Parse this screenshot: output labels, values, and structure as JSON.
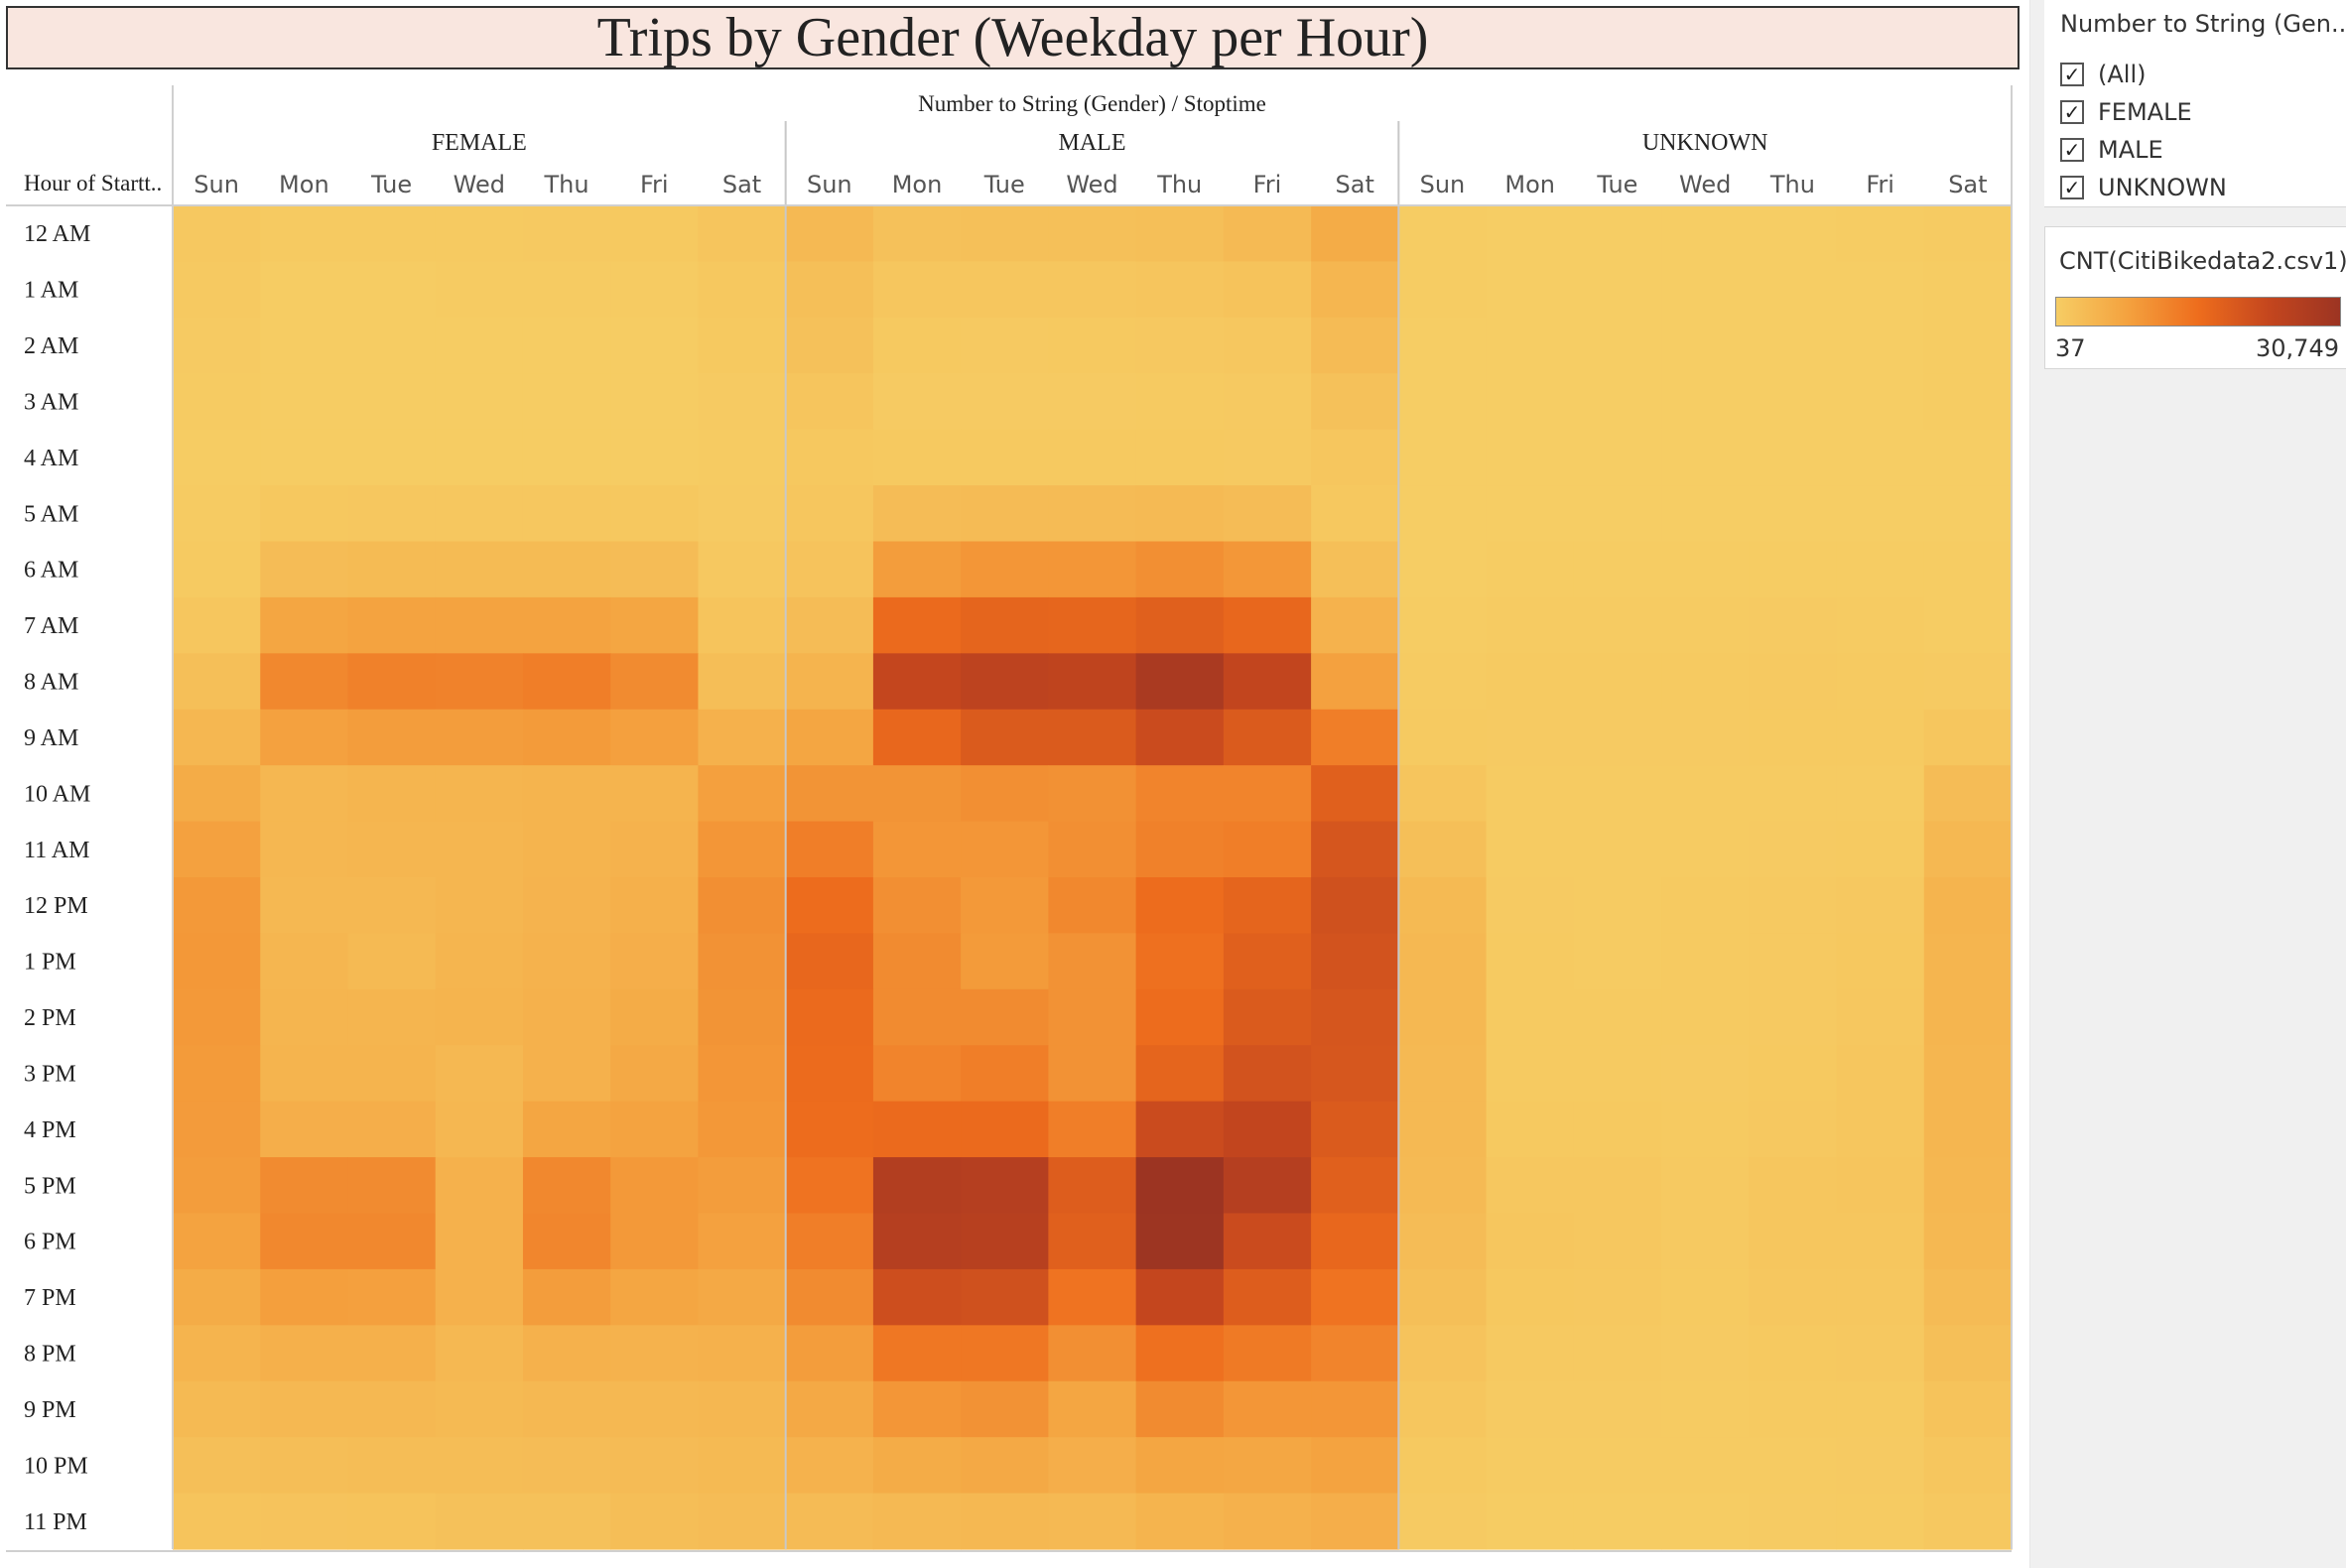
{
  "title": "Trips by Gender (Weekday per Hour)",
  "header": {
    "columns_title": "Number to String (Gender)  /  Stoptime",
    "row_header": "Hour of Startt.."
  },
  "filter": {
    "title": "Number to String (Gen...",
    "items": [
      {
        "label": "(All)",
        "checked": true
      },
      {
        "label": "FEMALE",
        "checked": true
      },
      {
        "label": "MALE",
        "checked": true
      },
      {
        "label": "UNKNOWN",
        "checked": true
      }
    ]
  },
  "legend": {
    "title": "CNT(CitiBikedata2.csv1)",
    "min_label": "37",
    "max_label": "30,749",
    "colors": [
      "#f6cd64",
      "#f4a23f",
      "#ee6d1d",
      "#c4461e",
      "#9c3422"
    ]
  },
  "chart_data": {
    "type": "heatmap",
    "title": "Trips by Gender (Weekday per Hour)",
    "xlabel": "Number to String (Gender)  /  Stoptime",
    "ylabel": "Hour of Startt..",
    "measure": "CNT(CitiBikedata2.csv1)",
    "color_range": [
      37,
      30749
    ],
    "groups": [
      "FEMALE",
      "MALE",
      "UNKNOWN"
    ],
    "days": [
      "Sun",
      "Mon",
      "Tue",
      "Wed",
      "Thu",
      "Fri",
      "Sat"
    ],
    "hours": [
      "12 AM",
      "1 AM",
      "2 AM",
      "3 AM",
      "4 AM",
      "5 AM",
      "6 AM",
      "7 AM",
      "8 AM",
      "9 AM",
      "10 AM",
      "11 AM",
      "12 PM",
      "1 PM",
      "2 PM",
      "3 PM",
      "4 PM",
      "5 PM",
      "6 PM",
      "7 PM",
      "8 PM",
      "9 PM",
      "10 PM",
      "11 PM"
    ],
    "values": {
      "FEMALE": [
        [
          900,
          600,
          600,
          650,
          700,
          800,
          1500
        ],
        [
          700,
          300,
          300,
          350,
          400,
          450,
          1000
        ],
        [
          500,
          200,
          200,
          200,
          250,
          300,
          800
        ],
        [
          350,
          150,
          150,
          150,
          150,
          200,
          500
        ],
        [
          300,
          200,
          200,
          200,
          200,
          200,
          350
        ],
        [
          400,
          1000,
          1100,
          1100,
          1100,
          1000,
          500
        ],
        [
          600,
          3000,
          3300,
          3300,
          3300,
          3000,
          900
        ],
        [
          1300,
          7000,
          7500,
          7500,
          7600,
          7000,
          1700
        ],
        [
          2500,
          11500,
          12500,
          12300,
          13000,
          11000,
          2800
        ],
        [
          4000,
          7800,
          8500,
          8500,
          8800,
          8000,
          5000
        ],
        [
          6000,
          4000,
          4300,
          4300,
          4500,
          4500,
          8000
        ],
        [
          7800,
          4000,
          4200,
          4200,
          4500,
          4800,
          9500
        ],
        [
          9000,
          3800,
          3700,
          4200,
          4600,
          5200,
          10500
        ],
        [
          9200,
          4200,
          3500,
          4300,
          4800,
          5500,
          10000
        ],
        [
          9000,
          4300,
          4300,
          4500,
          5000,
          6000,
          9800
        ],
        [
          8800,
          4500,
          4500,
          3800,
          5000,
          6500,
          9500
        ],
        [
          8700,
          5500,
          5500,
          4000,
          7000,
          7500,
          9200
        ],
        [
          8500,
          11000,
          11000,
          5000,
          11500,
          9000,
          8500
        ],
        [
          7500,
          11500,
          11500,
          5000,
          11800,
          9000,
          7800
        ],
        [
          6000,
          8200,
          8000,
          5000,
          8500,
          7000,
          6500
        ],
        [
          4500,
          5300,
          5300,
          3800,
          5000,
          4800,
          5000
        ],
        [
          3500,
          3800,
          3800,
          3500,
          3800,
          3800,
          4000
        ],
        [
          2500,
          2800,
          2900,
          2900,
          3000,
          3200,
          3500
        ],
        [
          1700,
          1800,
          1900,
          2200,
          2200,
          2800,
          3000
        ]
      ],
      "MALE": [
        [
          3600,
          2200,
          2300,
          2400,
          2600,
          3400,
          6000
        ],
        [
          2600,
          1200,
          1200,
          1300,
          1500,
          1900,
          4200
        ],
        [
          2100,
          800,
          700,
          800,
          900,
          1100,
          3200
        ],
        [
          1500,
          500,
          500,
          500,
          600,
          700,
          2200
        ],
        [
          1000,
          800,
          800,
          800,
          800,
          700,
          1200
        ],
        [
          1200,
          3000,
          3200,
          3200,
          3400,
          3000,
          1000
        ],
        [
          1800,
          8500,
          9500,
          9500,
          10500,
          9300,
          2500
        ],
        [
          3000,
          16000,
          17000,
          16800,
          18000,
          16500,
          4800
        ],
        [
          4500,
          23000,
          24500,
          24000,
          28000,
          23500,
          7800
        ],
        [
          7000,
          16500,
          19000,
          19000,
          22000,
          19000,
          13000
        ],
        [
          9800,
          9800,
          10500,
          10200,
          12000,
          12000,
          18000
        ],
        [
          13000,
          9500,
          9500,
          10500,
          12500,
          13000,
          20000
        ],
        [
          15500,
          10500,
          9000,
          11500,
          15500,
          17000,
          21000
        ],
        [
          16500,
          11000,
          8800,
          10000,
          15000,
          18000,
          20500
        ],
        [
          16000,
          11000,
          11000,
          10000,
          15500,
          19000,
          20000
        ],
        [
          15800,
          12000,
          13000,
          10000,
          17000,
          20500,
          19800
        ],
        [
          15500,
          16000,
          16000,
          13000,
          22000,
          23500,
          19000
        ],
        [
          14500,
          26500,
          26000,
          18500,
          30749,
          26000,
          18000
        ],
        [
          13000,
          26000,
          25500,
          18000,
          30500,
          22000,
          16500
        ],
        [
          11000,
          21500,
          21000,
          14500,
          23000,
          18500,
          14500
        ],
        [
          8500,
          14000,
          14000,
          10500,
          15000,
          13500,
          12000
        ],
        [
          6500,
          9500,
          10000,
          7000,
          11000,
          9500,
          9500
        ],
        [
          4800,
          6000,
          6500,
          5500,
          7000,
          6800,
          7500
        ],
        [
          3200,
          3600,
          3800,
          3600,
          4500,
          5000,
          5500
        ]
      ],
      "UNKNOWN": [
        [
          250,
          100,
          100,
          100,
          100,
          150,
          400
        ],
        [
          150,
          80,
          60,
          60,
          70,
          90,
          300
        ],
        [
          120,
          50,
          40,
          40,
          45,
          60,
          220
        ],
        [
          90,
          40,
          37,
          37,
          40,
          50,
          180
        ],
        [
          70,
          45,
          45,
          45,
          45,
          45,
          120
        ],
        [
          80,
          120,
          120,
          120,
          120,
          110,
          100
        ],
        [
          120,
          250,
          260,
          260,
          270,
          250,
          180
        ],
        [
          200,
          450,
          480,
          470,
          500,
          460,
          300
        ],
        [
          350,
          600,
          650,
          640,
          700,
          620,
          500
        ],
        [
          600,
          500,
          550,
          540,
          600,
          560,
          1200
        ],
        [
          1500,
          400,
          420,
          420,
          460,
          480,
          3000
        ],
        [
          2500,
          450,
          460,
          460,
          520,
          600,
          3800
        ],
        [
          3500,
          500,
          480,
          560,
          680,
          900,
          4500
        ],
        [
          3800,
          560,
          450,
          560,
          700,
          1000,
          4400
        ],
        [
          3700,
          600,
          560,
          580,
          760,
          1100,
          4300
        ],
        [
          3600,
          650,
          600,
          500,
          800,
          1200,
          4200
        ],
        [
          3600,
          800,
          780,
          560,
          900,
          1300,
          4100
        ],
        [
          3400,
          1100,
          1100,
          680,
          1300,
          1400,
          4000
        ],
        [
          3000,
          1200,
          1150,
          700,
          1300,
          1300,
          3700
        ],
        [
          2500,
          1000,
          950,
          650,
          1100,
          1100,
          3200
        ],
        [
          1800,
          700,
          700,
          520,
          800,
          850,
          2600
        ],
        [
          1200,
          500,
          520,
          450,
          600,
          650,
          1900
        ],
        [
          800,
          380,
          400,
          380,
          450,
          500,
          1300
        ],
        [
          500,
          250,
          270,
          270,
          330,
          400,
          900
        ]
      ]
    }
  }
}
